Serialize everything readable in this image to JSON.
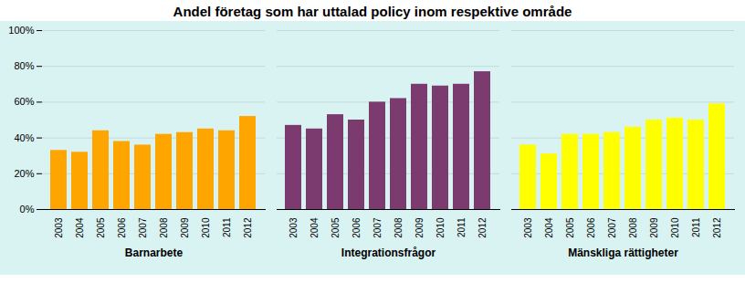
{
  "chart_data": {
    "type": "bar",
    "title": "Andel företag som har uttalad policy inom respektive område",
    "categories": [
      "2003",
      "2004",
      "2005",
      "2006",
      "2007",
      "2008",
      "2009",
      "2010",
      "2011",
      "2012"
    ],
    "series": [
      {
        "name": "Barnarbete",
        "color": "#FFA500",
        "values": [
          0.33,
          0.32,
          0.44,
          0.38,
          0.36,
          0.42,
          0.43,
          0.45,
          0.44,
          0.52
        ]
      },
      {
        "name": "Integrationsfrågor",
        "color": "#7B3B6E",
        "values": [
          0.47,
          0.45,
          0.53,
          0.5,
          0.6,
          0.62,
          0.7,
          0.69,
          0.7,
          0.77
        ]
      },
      {
        "name": "Mänskliga rättigheter",
        "color": "#FFFF00",
        "values": [
          0.36,
          0.31,
          0.42,
          0.42,
          0.43,
          0.46,
          0.5,
          0.51,
          0.5,
          0.59
        ]
      }
    ],
    "ylim": [
      0,
      1.0
    ],
    "yticks": [
      {
        "value": 0,
        "label": "0%"
      },
      {
        "value": 0.2,
        "label": "20%"
      },
      {
        "value": 0.4,
        "label": "40%"
      },
      {
        "value": 0.6,
        "label": "60%"
      },
      {
        "value": 0.8,
        "label": "80%"
      },
      {
        "value": 1.0,
        "label": "100%"
      }
    ],
    "grid": true
  }
}
